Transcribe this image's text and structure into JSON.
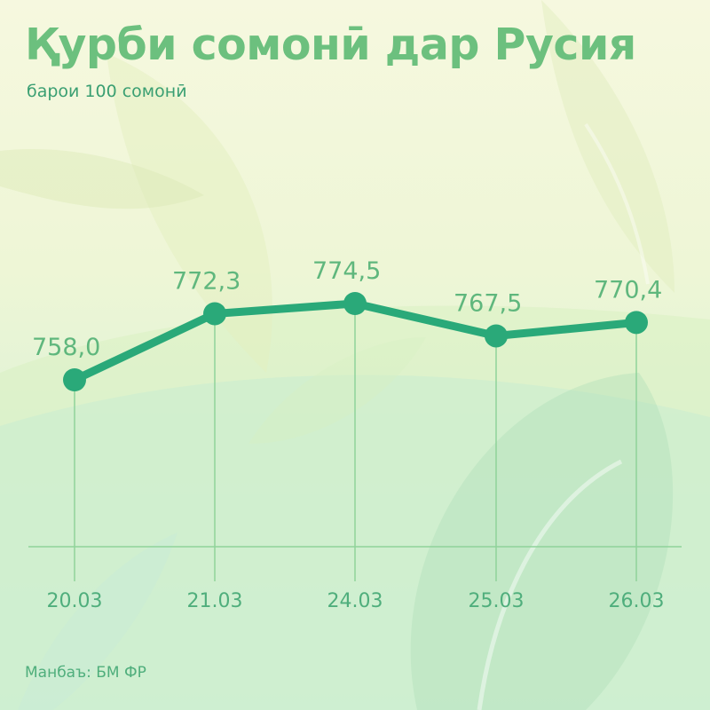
{
  "header": {
    "title": "Қурби сомонӣ дар Русия",
    "subtitle": "барои 100 сомонӣ"
  },
  "footer": {
    "source": "Манбаъ: БМ ФР"
  },
  "colors": {
    "line": "#2aa979",
    "dot": "#2aa979",
    "label": "#5fb77d",
    "title": "#6cc07e",
    "guide": "#8fd39a"
  },
  "chart_data": {
    "type": "line",
    "title": "Қурби сомонӣ дар Русия",
    "subtitle": "барои 100 сомонӣ",
    "xlabel": "",
    "ylabel": "",
    "categories": [
      "20.03",
      "21.03",
      "24.03",
      "25.03",
      "26.03"
    ],
    "series": [
      {
        "values": [
          758.0,
          772.3,
          774.5,
          767.5,
          770.4
        ],
        "labels": [
          "758,0",
          "772,3",
          "774,5",
          "767,5",
          "770,4"
        ]
      }
    ],
    "ylim": [
      705,
      785
    ],
    "grid": false,
    "legend": "none"
  }
}
